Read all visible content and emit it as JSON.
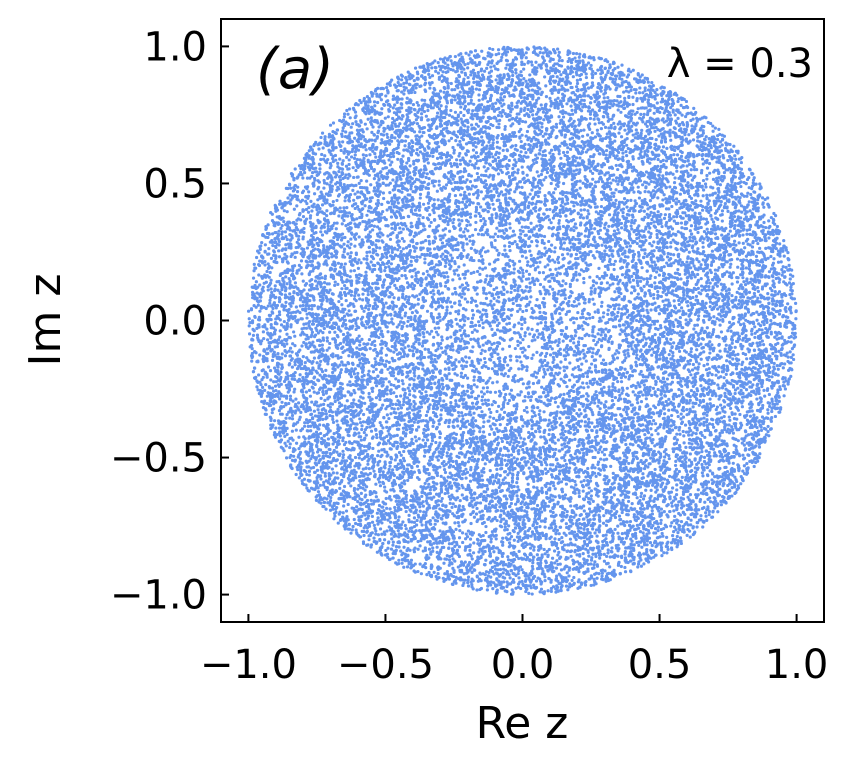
{
  "chart_data": {
    "type": "scatter",
    "title": "",
    "xlabel": "Re z",
    "ylabel": "Im z",
    "xlim": [
      -1.1,
      1.1
    ],
    "ylim": [
      -1.1,
      1.1
    ],
    "xticks": [
      -1.0,
      -0.5,
      0.0,
      0.5,
      1.0
    ],
    "yticks": [
      -1.0,
      -0.5,
      0.0,
      0.5,
      1.0
    ],
    "xtick_labels": [
      "−1.0",
      "−0.5",
      "0.0",
      "0.5",
      "1.0"
    ],
    "ytick_labels": [
      "−1.0",
      "−0.5",
      "0.0",
      "0.5",
      "1.0"
    ],
    "grid": false,
    "color": "#6495ED",
    "panel_label": "(a)",
    "annotation": "λ = 0.3",
    "series": [
      {
        "distribution": "points filling the unit disk |z| ≤ 1, slightly sparser near the origin",
        "points_approx": 20000
      }
    ]
  }
}
